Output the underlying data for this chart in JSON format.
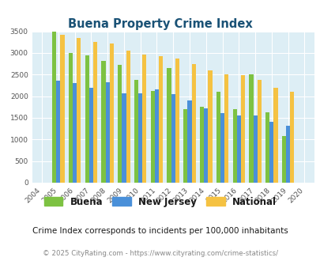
{
  "title": "Buena Property Crime Index",
  "years": [
    2004,
    2005,
    2006,
    2007,
    2008,
    2009,
    2010,
    2011,
    2012,
    2013,
    2014,
    2015,
    2016,
    2017,
    2018,
    2019,
    2020
  ],
  "buena": [
    0,
    3500,
    3000,
    2950,
    2820,
    2720,
    2380,
    2130,
    2650,
    1700,
    1750,
    2100,
    1700,
    2500,
    1630,
    1070,
    0
  ],
  "new_jersey": [
    0,
    2360,
    2310,
    2200,
    2320,
    2060,
    2060,
    2160,
    2050,
    1900,
    1720,
    1610,
    1550,
    1550,
    1400,
    1310,
    0
  ],
  "national": [
    0,
    3420,
    3350,
    3260,
    3210,
    3060,
    2960,
    2930,
    2870,
    2740,
    2600,
    2500,
    2480,
    2380,
    2200,
    2110,
    0
  ],
  "buena_color": "#7dc242",
  "nj_color": "#4a90d9",
  "nat_color": "#f5c242",
  "bg_color": "#ddeef5",
  "ylim": [
    0,
    3500
  ],
  "yticks": [
    0,
    500,
    1000,
    1500,
    2000,
    2500,
    3000,
    3500
  ],
  "subtitle": "Crime Index corresponds to incidents per 100,000 inhabitants",
  "footer": "© 2025 CityRating.com - https://www.cityrating.com/crime-statistics/",
  "legend_labels": [
    "Buena",
    "New Jersey",
    "National"
  ],
  "bar_width": 0.25
}
